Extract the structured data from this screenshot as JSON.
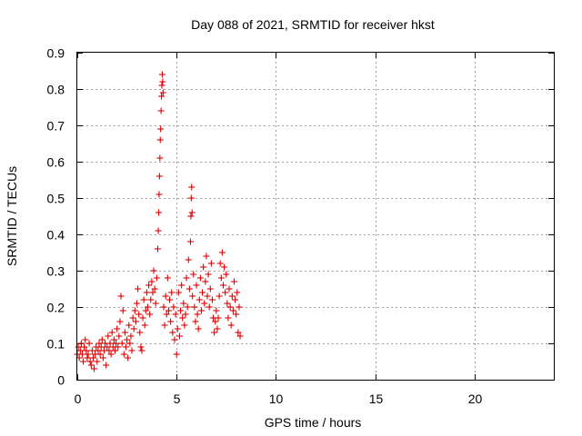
{
  "chart_data": {
    "type": "scatter",
    "title": "Day 088 of 2021, SRMTID for receiver hkst",
    "xlabel": "GPS time / hours",
    "ylabel": "SRMTID / TECUs",
    "xlim": [
      0,
      24
    ],
    "ylim": [
      0,
      0.9
    ],
    "xticks": [
      0,
      5,
      10,
      15,
      20
    ],
    "yticks": [
      0,
      0.1,
      0.2,
      0.3,
      0.4,
      0.5,
      0.6,
      0.7,
      0.8,
      0.9
    ],
    "xtick_labels": [
      "0",
      "5",
      "10",
      "15",
      "20"
    ],
    "ytick_labels": [
      "0",
      "0.1",
      "0.2",
      "0.3",
      "0.4",
      "0.5",
      "0.6",
      "0.7",
      "0.8",
      "0.9"
    ],
    "grid": true,
    "marker": "+",
    "marker_color": "#e00000",
    "series": [
      {
        "name": "SRMTID",
        "points": [
          [
            0.0,
            0.07
          ],
          [
            0.05,
            0.09
          ],
          [
            0.1,
            0.06
          ],
          [
            0.15,
            0.08
          ],
          [
            0.2,
            0.1
          ],
          [
            0.25,
            0.07
          ],
          [
            0.3,
            0.05
          ],
          [
            0.35,
            0.09
          ],
          [
            0.4,
            0.11
          ],
          [
            0.45,
            0.08
          ],
          [
            0.5,
            0.06
          ],
          [
            0.55,
            0.07
          ],
          [
            0.6,
            0.1
          ],
          [
            0.65,
            0.05
          ],
          [
            0.7,
            0.04
          ],
          [
            0.75,
            0.08
          ],
          [
            0.8,
            0.06
          ],
          [
            0.85,
            0.03
          ],
          [
            0.9,
            0.07
          ],
          [
            0.95,
            0.09
          ],
          [
            1.0,
            0.05
          ],
          [
            1.05,
            0.08
          ],
          [
            1.1,
            0.1
          ],
          [
            1.15,
            0.07
          ],
          [
            1.2,
            0.09
          ],
          [
            1.25,
            0.11
          ],
          [
            1.3,
            0.06
          ],
          [
            1.35,
            0.08
          ],
          [
            1.4,
            0.1
          ],
          [
            1.45,
            0.04
          ],
          [
            1.5,
            0.09
          ],
          [
            1.55,
            0.12
          ],
          [
            1.6,
            0.08
          ],
          [
            1.65,
            0.1
          ],
          [
            1.7,
            0.07
          ],
          [
            1.75,
            0.13
          ],
          [
            1.8,
            0.09
          ],
          [
            1.85,
            0.11
          ],
          [
            1.9,
            0.08
          ],
          [
            1.95,
            0.1
          ],
          [
            2.0,
            0.14
          ],
          [
            2.05,
            0.09
          ],
          [
            2.1,
            0.12
          ],
          [
            2.15,
            0.16
          ],
          [
            2.2,
            0.23
          ],
          [
            2.25,
            0.1
          ],
          [
            2.3,
            0.19
          ],
          [
            2.35,
            0.07
          ],
          [
            2.4,
            0.13
          ],
          [
            2.45,
            0.09
          ],
          [
            2.5,
            0.11
          ],
          [
            2.55,
            0.06
          ],
          [
            2.6,
            0.15
          ],
          [
            2.65,
            0.1
          ],
          [
            2.7,
            0.12
          ],
          [
            2.75,
            0.08
          ],
          [
            2.8,
            0.17
          ],
          [
            2.85,
            0.14
          ],
          [
            2.9,
            0.19
          ],
          [
            2.95,
            0.16
          ],
          [
            3.0,
            0.21
          ],
          [
            3.05,
            0.25
          ],
          [
            3.1,
            0.18
          ],
          [
            3.15,
            0.13
          ],
          [
            3.2,
            0.09
          ],
          [
            3.25,
            0.08
          ],
          [
            3.3,
            0.17
          ],
          [
            3.35,
            0.22
          ],
          [
            3.4,
            0.15
          ],
          [
            3.45,
            0.19
          ],
          [
            3.5,
            0.24
          ],
          [
            3.55,
            0.2
          ],
          [
            3.6,
            0.26
          ],
          [
            3.65,
            0.18
          ],
          [
            3.7,
            0.22
          ],
          [
            3.75,
            0.27
          ],
          [
            3.8,
            0.24
          ],
          [
            3.85,
            0.3
          ],
          [
            3.9,
            0.25
          ],
          [
            3.95,
            0.21
          ],
          [
            4.0,
            0.28
          ],
          [
            4.05,
            0.36
          ],
          [
            4.08,
            0.41
          ],
          [
            4.1,
            0.46
          ],
          [
            4.12,
            0.51
          ],
          [
            4.14,
            0.56
          ],
          [
            4.16,
            0.61
          ],
          [
            4.18,
            0.66
          ],
          [
            4.2,
            0.69
          ],
          [
            4.22,
            0.74
          ],
          [
            4.24,
            0.78
          ],
          [
            4.26,
            0.81
          ],
          [
            4.28,
            0.84
          ],
          [
            4.3,
            0.82
          ],
          [
            4.32,
            0.79
          ],
          [
            4.35,
            0.2
          ],
          [
            4.4,
            0.15
          ],
          [
            4.45,
            0.23
          ],
          [
            4.5,
            0.18
          ],
          [
            4.55,
            0.28
          ],
          [
            4.6,
            0.19
          ],
          [
            4.65,
            0.22
          ],
          [
            4.7,
            0.16
          ],
          [
            4.75,
            0.24
          ],
          [
            4.8,
            0.13
          ],
          [
            4.85,
            0.2
          ],
          [
            4.9,
            0.11
          ],
          [
            4.95,
            0.18
          ],
          [
            5.0,
            0.07
          ],
          [
            5.05,
            0.14
          ],
          [
            5.1,
            0.24
          ],
          [
            5.15,
            0.12
          ],
          [
            5.2,
            0.19
          ],
          [
            5.25,
            0.26
          ],
          [
            5.3,
            0.17
          ],
          [
            5.35,
            0.21
          ],
          [
            5.4,
            0.15
          ],
          [
            5.45,
            0.18
          ],
          [
            5.5,
            0.28
          ],
          [
            5.55,
            0.2
          ],
          [
            5.6,
            0.33
          ],
          [
            5.65,
            0.25
          ],
          [
            5.7,
            0.38
          ],
          [
            5.72,
            0.45
          ],
          [
            5.74,
            0.5
          ],
          [
            5.76,
            0.53
          ],
          [
            5.78,
            0.46
          ],
          [
            5.8,
            0.23
          ],
          [
            5.85,
            0.29
          ],
          [
            5.9,
            0.2
          ],
          [
            5.95,
            0.16
          ],
          [
            6.0,
            0.26
          ],
          [
            6.05,
            0.18
          ],
          [
            6.1,
            0.14
          ],
          [
            6.15,
            0.22
          ],
          [
            6.2,
            0.28
          ],
          [
            6.25,
            0.19
          ],
          [
            6.3,
            0.24
          ],
          [
            6.35,
            0.31
          ],
          [
            6.4,
            0.21
          ],
          [
            6.45,
            0.27
          ],
          [
            6.5,
            0.34
          ],
          [
            6.55,
            0.23
          ],
          [
            6.6,
            0.29
          ],
          [
            6.65,
            0.2
          ],
          [
            6.7,
            0.25
          ],
          [
            6.75,
            0.32
          ],
          [
            6.8,
            0.22
          ],
          [
            6.85,
            0.17
          ],
          [
            6.9,
            0.13
          ],
          [
            6.95,
            0.16
          ],
          [
            7.0,
            0.19
          ],
          [
            7.05,
            0.14
          ],
          [
            7.1,
            0.17
          ],
          [
            7.15,
            0.23
          ],
          [
            7.2,
            0.32
          ],
          [
            7.25,
            0.28
          ],
          [
            7.3,
            0.35
          ],
          [
            7.35,
            0.26
          ],
          [
            7.4,
            0.31
          ],
          [
            7.45,
            0.24
          ],
          [
            7.5,
            0.29
          ],
          [
            7.55,
            0.21
          ],
          [
            7.6,
            0.17
          ],
          [
            7.65,
            0.25
          ],
          [
            7.7,
            0.2
          ],
          [
            7.75,
            0.15
          ],
          [
            7.8,
            0.23
          ],
          [
            7.85,
            0.19
          ],
          [
            7.9,
            0.27
          ],
          [
            7.95,
            0.22
          ],
          [
            8.0,
            0.18
          ],
          [
            8.05,
            0.24
          ],
          [
            8.1,
            0.13
          ],
          [
            8.15,
            0.2
          ],
          [
            8.2,
            0.12
          ]
        ]
      }
    ]
  }
}
